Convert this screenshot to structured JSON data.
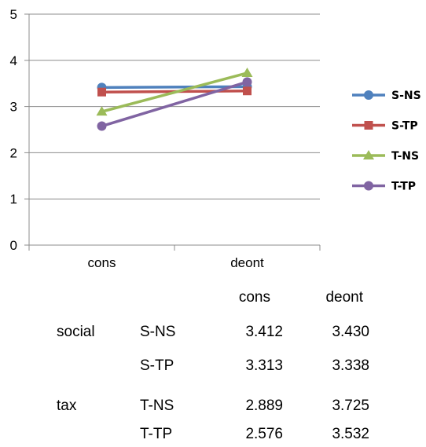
{
  "chart_data": {
    "type": "line",
    "categories": [
      "cons",
      "deont"
    ],
    "ylim": [
      0,
      5
    ],
    "yticks": [
      0,
      1,
      2,
      3,
      4,
      5
    ],
    "grid": true,
    "legend": "right",
    "series": [
      {
        "name": "S-NS",
        "values": [
          3.412,
          3.43
        ],
        "color": "#4f81bd",
        "marker": "circle"
      },
      {
        "name": "S-TP",
        "values": [
          3.313,
          3.338
        ],
        "color": "#c0504d",
        "marker": "square"
      },
      {
        "name": "T-NS",
        "values": [
          2.889,
          3.725
        ],
        "color": "#9bbb59",
        "marker": "triangle"
      },
      {
        "name": "T-TP",
        "values": [
          2.576,
          3.532
        ],
        "color": "#8064a2",
        "marker": "circle"
      }
    ]
  },
  "table": {
    "headers": [
      "cons",
      "deont"
    ],
    "groups": [
      {
        "label": "social",
        "rows": [
          {
            "name": "S-NS",
            "cons": "3.412",
            "deont": "3.430"
          },
          {
            "name": "S-TP",
            "cons": "3.313",
            "deont": "3.338"
          }
        ]
      },
      {
        "label": "tax",
        "rows": [
          {
            "name": "T-NS",
            "cons": "2.889",
            "deont": "3.725"
          },
          {
            "name": "T-TP",
            "cons": "2.576",
            "deont": "3.532"
          }
        ]
      }
    ]
  }
}
